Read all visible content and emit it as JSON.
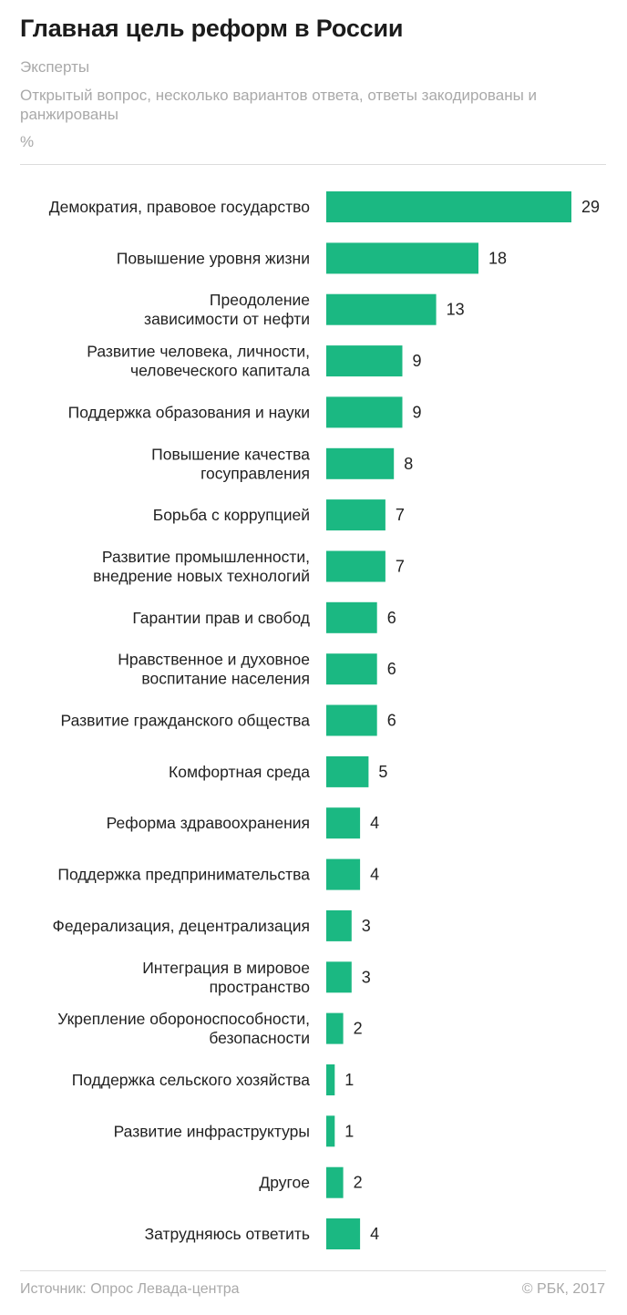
{
  "header": {
    "title": "Главная цель реформ в России",
    "subtitle": "Эксперты",
    "note": "Открытый вопрос, несколько вариантов ответа, ответы закодированы и ранжированы",
    "unit": "%"
  },
  "footer": {
    "source": "Источник: Опрос Левада-центра",
    "copyright": "© РБК, 2017"
  },
  "colors": {
    "bar": "#1bb882",
    "text": "#222222",
    "muted": "#a9a9a9"
  },
  "chart_data": {
    "type": "bar",
    "orientation": "horizontal",
    "title": "Главная цель реформ в России",
    "unit": "%",
    "xlim": [
      0,
      29
    ],
    "grid": false,
    "categories": [
      [
        "Демократия, правовое государство"
      ],
      [
        "Повышение уровня жизни"
      ],
      [
        "Преодоление",
        "зависимости от нефти"
      ],
      [
        "Развитие человека, личности,",
        "человеческого капитала"
      ],
      [
        "Поддержка образования и науки"
      ],
      [
        "Повышение качества",
        "госуправления"
      ],
      [
        "Борьба с коррупцией"
      ],
      [
        "Развитие промышленности,",
        "внедрение новых технологий"
      ],
      [
        "Гарантии прав и свобод"
      ],
      [
        "Нравственное и духовное",
        "воспитание населения"
      ],
      [
        "Развитие гражданского общества"
      ],
      [
        "Комфортная среда"
      ],
      [
        "Реформа здравоохранения"
      ],
      [
        "Поддержка предпринимательства"
      ],
      [
        "Федерализация, децентрализация"
      ],
      [
        "Интеграция в мировое",
        "пространство"
      ],
      [
        "Укрепление обороноспособности,",
        "безопасности"
      ],
      [
        "Поддержка сельского хозяйства"
      ],
      [
        "Развитие инфраструктуры"
      ],
      [
        "Другое"
      ],
      [
        "Затрудняюсь ответить"
      ]
    ],
    "values": [
      29,
      18,
      13,
      9,
      9,
      8,
      7,
      7,
      6,
      6,
      6,
      5,
      4,
      4,
      3,
      3,
      2,
      1,
      1,
      2,
      4
    ]
  }
}
